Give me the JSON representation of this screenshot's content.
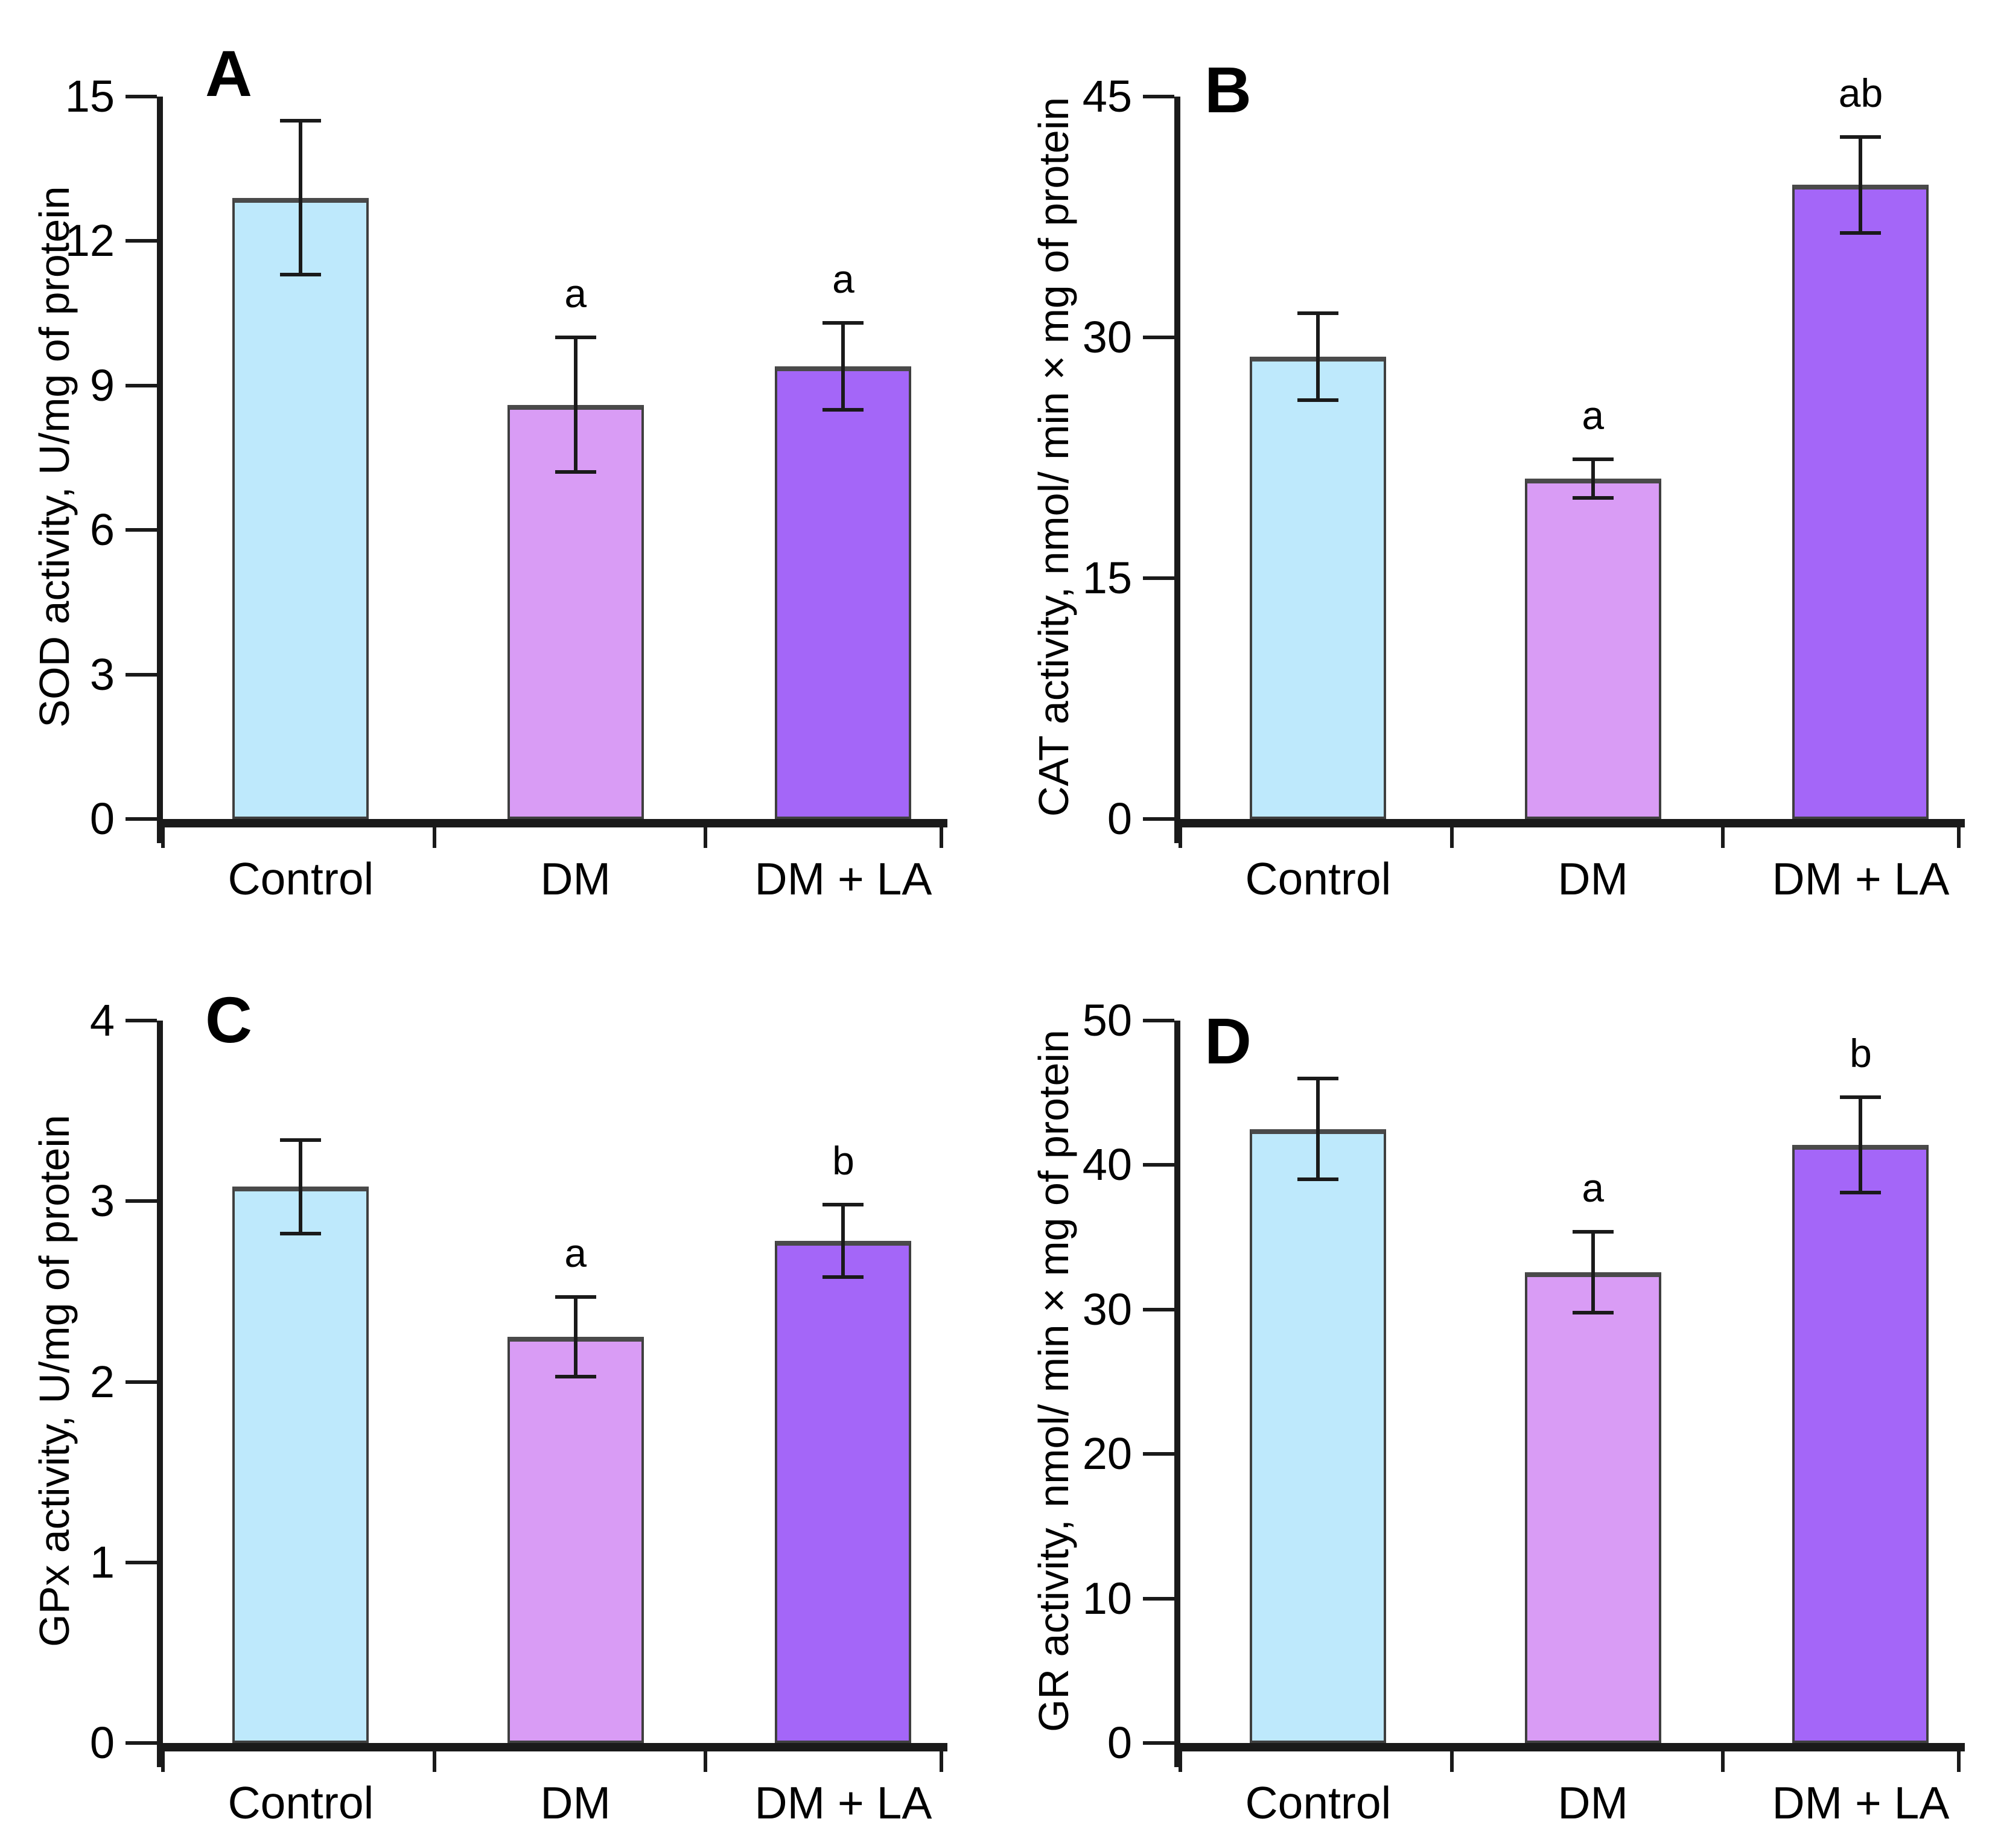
{
  "figure": {
    "background": "#ffffff"
  },
  "colors": {
    "bar_fills": [
      "#BEE9FC",
      "#D99CF5",
      "#A466F8"
    ],
    "bar_border": "#3F3F3F",
    "bar_border_top": "#4A4A4A",
    "axis": "#1A1A1A",
    "text": "#000000"
  },
  "categories": [
    "Control",
    "DM",
    "DM + LA"
  ],
  "chart_data": [
    {
      "type": "bar",
      "panel_letter": "A",
      "ylabel": "SOD activity, U/mg of protein",
      "xlabel": "",
      "ylim": [
        0,
        15
      ],
      "yticks": [
        15,
        12,
        9,
        6,
        3,
        0
      ],
      "grid": false,
      "legend": "none",
      "categories": [
        "Control",
        "DM",
        "DM + LA"
      ],
      "series": [
        {
          "category": "Control",
          "value": 12.9,
          "error": 1.6,
          "sig": ""
        },
        {
          "category": "DM",
          "value": 8.6,
          "error": 1.4,
          "sig": "a"
        },
        {
          "category": "DM + LA",
          "value": 9.4,
          "error": 0.9,
          "sig": "a"
        }
      ]
    },
    {
      "type": "bar",
      "panel_letter": "B",
      "ylabel": "CAT activity, nmol/ min × mg of protein",
      "xlabel": "",
      "ylim": [
        0,
        45
      ],
      "yticks": [
        45,
        30,
        15,
        0
      ],
      "grid": false,
      "legend": "none",
      "categories": [
        "Control",
        "DM",
        "DM + LA"
      ],
      "series": [
        {
          "category": "Control",
          "value": 28.8,
          "error": 2.7,
          "sig": ""
        },
        {
          "category": "DM",
          "value": 21.2,
          "error": 1.2,
          "sig": "a"
        },
        {
          "category": "DM + LA",
          "value": 39.5,
          "error": 3.0,
          "sig": "ab"
        }
      ]
    },
    {
      "type": "bar",
      "panel_letter": "C",
      "ylabel": "GPx activity, U/mg of protein",
      "xlabel": "",
      "ylim": [
        0,
        4
      ],
      "yticks": [
        4,
        3,
        2,
        1,
        0
      ],
      "grid": false,
      "legend": "none",
      "categories": [
        "Control",
        "DM",
        "DM + LA"
      ],
      "series": [
        {
          "category": "Control",
          "value": 3.08,
          "error": 0.26,
          "sig": ""
        },
        {
          "category": "DM",
          "value": 2.25,
          "error": 0.22,
          "sig": "a"
        },
        {
          "category": "DM + LA",
          "value": 2.78,
          "error": 0.2,
          "sig": "b"
        }
      ]
    },
    {
      "type": "bar",
      "panel_letter": "D",
      "ylabel": "GR activity, nmol/ min × mg of protein",
      "xlabel": "",
      "ylim": [
        0,
        50
      ],
      "yticks": [
        50,
        40,
        30,
        20,
        10,
        0
      ],
      "grid": false,
      "legend": "none",
      "categories": [
        "Control",
        "DM",
        "DM + LA"
      ],
      "series": [
        {
          "category": "Control",
          "value": 42.5,
          "error": 3.5,
          "sig": ""
        },
        {
          "category": "DM",
          "value": 32.6,
          "error": 2.8,
          "sig": "a"
        },
        {
          "category": "DM + LA",
          "value": 41.4,
          "error": 3.3,
          "sig": "b"
        }
      ]
    }
  ]
}
